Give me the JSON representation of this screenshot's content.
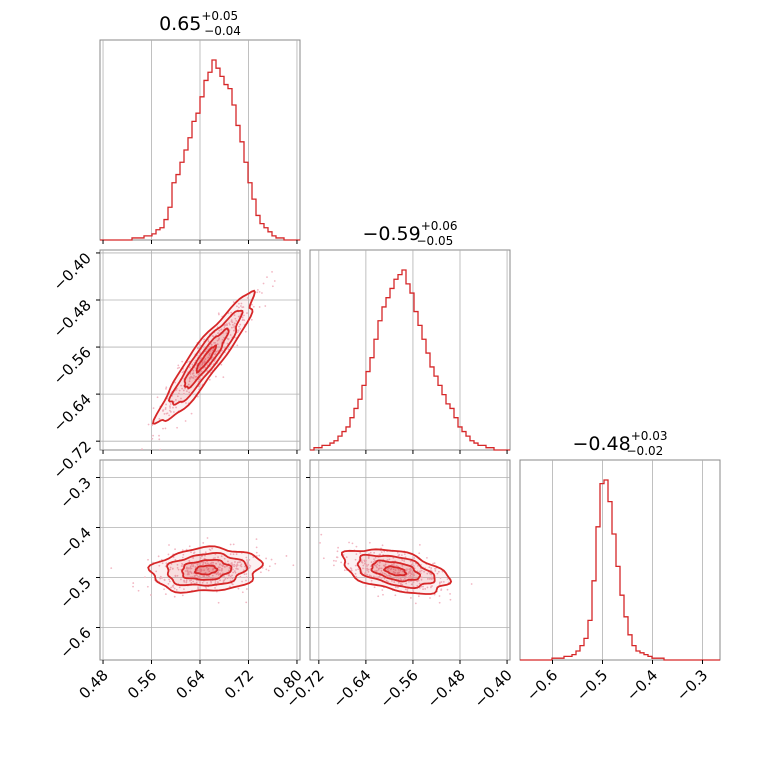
{
  "chart_data": {
    "type": "corner",
    "color": "#d62728",
    "grid": true,
    "titles": [
      {
        "main": "0.65",
        "plus": "+0.05",
        "minus": "−0.04"
      },
      {
        "main": "−0.59",
        "plus": "+0.06",
        "minus": "−0.05"
      },
      {
        "main": "−0.48",
        "plus": "+0.03",
        "minus": "−0.02"
      }
    ],
    "params": [
      {
        "range": [
          0.475,
          0.805
        ],
        "ticks": [
          0.48,
          0.56,
          0.64,
          0.72,
          0.8
        ],
        "tick_labels": [
          "0.48",
          "0.56",
          "0.64",
          "0.72",
          "0.80"
        ],
        "median": 0.65
      },
      {
        "range": [
          -0.735,
          -0.395
        ],
        "ticks": [
          -0.72,
          -0.64,
          -0.56,
          -0.48,
          -0.4
        ],
        "tick_labels": [
          "−0.72",
          "−0.64",
          "−0.56",
          "−0.48",
          "−0.40"
        ],
        "median": -0.59
      },
      {
        "range": [
          -0.665,
          -0.265
        ],
        "ticks": [
          -0.6,
          -0.5,
          -0.4,
          -0.3
        ],
        "tick_labels": [
          "−0.6",
          "−0.5",
          "−0.4",
          "−0.3"
        ],
        "median": -0.48
      }
    ],
    "pairs": [
      {
        "x": 0,
        "y": 1,
        "mean": [
          0.65,
          -0.58
        ],
        "sd": [
          0.04,
          0.055
        ],
        "rho": 0.93
      },
      {
        "x": 0,
        "y": 2,
        "mean": [
          0.65,
          -0.485
        ],
        "sd": [
          0.045,
          0.022
        ],
        "rho": 0.15
      },
      {
        "x": 1,
        "y": 2,
        "mean": [
          -0.59,
          -0.487
        ],
        "sd": [
          0.045,
          0.022
        ],
        "rho": -0.45
      }
    ],
    "histograms": [
      {
        "range": [
          0.475,
          0.805
        ],
        "bins": 50,
        "counts": [
          0,
          0,
          0,
          0,
          0,
          0,
          0,
          0,
          1,
          1,
          1,
          2,
          2,
          3,
          5,
          6,
          10,
          16,
          28,
          32,
          38,
          44,
          50,
          58,
          62,
          70,
          78,
          82,
          88,
          84,
          80,
          76,
          74,
          66,
          56,
          48,
          38,
          28,
          20,
          12,
          8,
          6,
          4,
          2,
          1,
          1,
          0,
          0,
          0,
          0
        ]
      },
      {
        "range": [
          -0.735,
          -0.395
        ],
        "bins": 50,
        "counts": [
          0,
          1,
          1,
          2,
          2,
          3,
          4,
          6,
          8,
          10,
          14,
          18,
          22,
          28,
          34,
          40,
          48,
          56,
          62,
          66,
          70,
          74,
          76,
          78,
          72,
          68,
          60,
          54,
          48,
          42,
          36,
          32,
          28,
          24,
          20,
          18,
          14,
          10,
          8,
          6,
          4,
          3,
          2,
          2,
          1,
          1,
          0,
          0,
          0,
          0
        ]
      },
      {
        "range": [
          -0.665,
          -0.265
        ],
        "bins": 50,
        "counts": [
          0,
          0,
          0,
          0,
          0,
          0,
          0,
          0,
          1,
          1,
          1,
          2,
          2,
          3,
          5,
          8,
          12,
          22,
          44,
          74,
          98,
          100,
          88,
          70,
          52,
          36,
          24,
          14,
          8,
          5,
          4,
          3,
          2,
          1,
          1,
          1,
          0,
          0,
          0,
          0,
          0,
          0,
          0,
          0,
          0,
          0,
          0,
          0,
          0,
          0
        ]
      }
    ]
  }
}
